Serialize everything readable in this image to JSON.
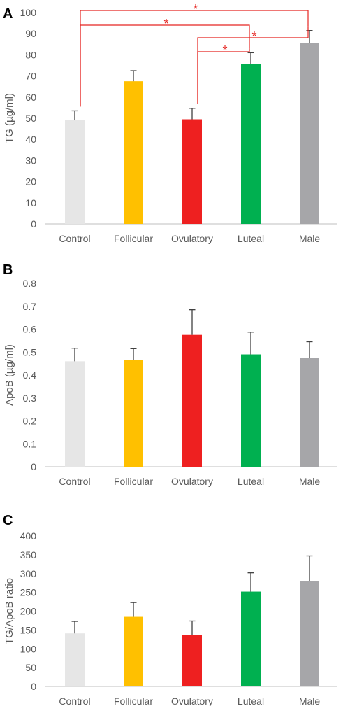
{
  "chart_data": [
    {
      "type": "bar",
      "panel_label": "A",
      "ylabel": "TG (µg/ml)",
      "categories": [
        "Control",
        "Follicular",
        "Ovulatory",
        "Luteal",
        "Male"
      ],
      "values": [
        49,
        67.5,
        49.5,
        75.5,
        85.5
      ],
      "error": [
        4.5,
        5,
        5.2,
        5.5,
        6
      ],
      "colors": [
        "#e6e6e6",
        "#ffc000",
        "#ee2020",
        "#00b050",
        "#a6a6a9"
      ],
      "ylim": [
        0,
        100
      ],
      "yticks": [
        0,
        10,
        20,
        30,
        40,
        50,
        60,
        70,
        80,
        90,
        100
      ],
      "significance": [
        {
          "from": "Control",
          "to": "Male",
          "label": "*"
        },
        {
          "from": "Control",
          "to": "Luteal",
          "label": "*"
        },
        {
          "from": "Ovulatory",
          "to": "Male",
          "label": "*"
        },
        {
          "from": "Ovulatory",
          "to": "Luteal",
          "label": "*"
        }
      ],
      "grid": false
    },
    {
      "type": "bar",
      "panel_label": "B",
      "ylabel": "ApoB (µg/ml)",
      "categories": [
        "Control",
        "Follicular",
        "Ovulatory",
        "Luteal",
        "Male"
      ],
      "values": [
        0.46,
        0.465,
        0.575,
        0.49,
        0.475
      ],
      "error": [
        0.057,
        0.05,
        0.11,
        0.097,
        0.07
      ],
      "colors": [
        "#e6e6e6",
        "#ffc000",
        "#ee2020",
        "#00b050",
        "#a6a6a9"
      ],
      "ylim": [
        0,
        0.8
      ],
      "yticks": [
        "0",
        "0.1",
        "0.2",
        "0.3",
        "0.4",
        "0.5",
        "0.6",
        "0.7",
        "0.8"
      ],
      "grid": false
    },
    {
      "type": "bar",
      "panel_label": "C",
      "ylabel": "TG/ApoB ratio",
      "categories": [
        "Control",
        "Follicular",
        "Ovulatory",
        "Luteal",
        "Male"
      ],
      "values": [
        141,
        185,
        137,
        252,
        280
      ],
      "error": [
        32,
        38,
        37,
        50,
        67
      ],
      "colors": [
        "#e6e6e6",
        "#ffc000",
        "#ee2020",
        "#00b050",
        "#a6a6a9"
      ],
      "ylim": [
        0,
        400
      ],
      "yticks": [
        0,
        50,
        100,
        150,
        200,
        250,
        300,
        350,
        400
      ],
      "grid": false
    }
  ],
  "style": {
    "axis_color": "#bfbfbf",
    "error_color": "#404040",
    "significance_color": "#e52521"
  }
}
